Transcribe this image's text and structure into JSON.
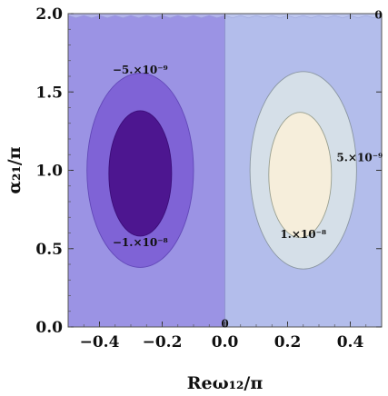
{
  "chart_data": {
    "type": "contour",
    "xlabel": "Reω₁₂/π",
    "ylabel": "α₂₁/π",
    "xlim": [
      -0.5,
      0.5
    ],
    "ylim": [
      0.0,
      2.0
    ],
    "x_ticks": [
      "−0.4",
      "−0.2",
      "0.0",
      "0.2",
      "0.4"
    ],
    "y_ticks": [
      "0.0",
      "0.5",
      "1.0",
      "1.5",
      "2.0"
    ],
    "x_tick_values": [
      -0.4,
      -0.2,
      0.0,
      0.2,
      0.4
    ],
    "y_tick_values": [
      0.0,
      0.5,
      1.0,
      1.5,
      2.0
    ],
    "grid": false,
    "regions": [
      {
        "name": "negative-band-left",
        "x_range": [
          -0.5,
          0.0
        ],
        "y_range": [
          0.0,
          2.0
        ],
        "color": "#9b93e4"
      },
      {
        "name": "positive-band-right",
        "x_range": [
          0.0,
          0.5
        ],
        "y_range": [
          0.0,
          2.0
        ],
        "color": "#b3bdeb"
      }
    ],
    "contours": [
      {
        "level_label": "−5.×10⁻⁹",
        "level": -5e-09,
        "center": [
          -0.27,
          1.0
        ],
        "x_halfwidth": 0.17,
        "y_halfwidth": 0.62,
        "fill": "#7f63d6",
        "stroke": "#6248b8"
      },
      {
        "level_label": "−1.×10⁻⁸",
        "level": -1e-08,
        "center": [
          -0.27,
          0.98
        ],
        "x_halfwidth": 0.1,
        "y_halfwidth": 0.4,
        "fill": "#4d1690",
        "stroke": "#3b0d78"
      },
      {
        "level_label": "5.×10⁻⁹",
        "level": 5e-09,
        "center": [
          0.25,
          1.0
        ],
        "x_halfwidth": 0.17,
        "y_halfwidth": 0.63,
        "fill": "#d5dfe8",
        "stroke": "#8a96a2"
      },
      {
        "level_label": "1.×10⁻⁸",
        "level": 1e-08,
        "center": [
          0.24,
          0.97
        ],
        "x_halfwidth": 0.1,
        "y_halfwidth": 0.4,
        "fill": "#f6eedb",
        "stroke": "#9aa090"
      }
    ],
    "annotations": [
      {
        "text": "−5.×10⁻⁹",
        "x": -0.27,
        "y": 1.64
      },
      {
        "text": "−1.×10⁻⁸",
        "x": -0.27,
        "y": 0.54
      },
      {
        "text": "5.×10⁻⁹",
        "x": 0.43,
        "y": 1.08
      },
      {
        "text": "1.×10⁻⁸",
        "x": 0.25,
        "y": 0.59
      },
      {
        "text": "0",
        "x": 0.0,
        "y": 0.02
      },
      {
        "text": "0",
        "x": 0.49,
        "y": 1.99
      }
    ]
  }
}
